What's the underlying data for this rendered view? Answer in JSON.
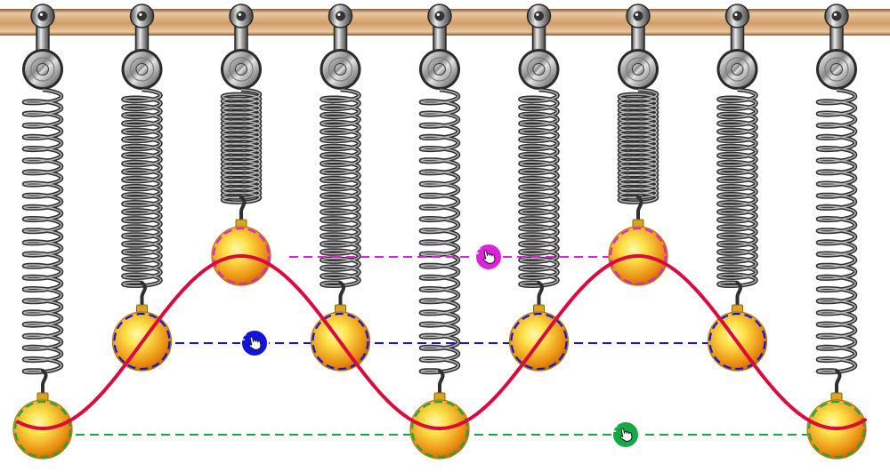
{
  "scene": {
    "background": "#ffffff"
  },
  "ceiling_bar": {
    "color_edge": "#8e5a30",
    "color_light": "#ebc9a0",
    "color_mid": "#cf9c68"
  },
  "spring": {
    "coil_color": "#2f2f2f",
    "highlight_color": "#b8b8b8"
  },
  "mass": {
    "color_light": "#ffe24a",
    "color_dark": "#e8890e",
    "outline_color": "#b5760c"
  },
  "wave": {
    "color": "#dc0a3c"
  },
  "handles": [
    {
      "color": "#dd22dd",
      "icon": "hand-pointer-icon"
    },
    {
      "color": "#1414d8",
      "icon": "hand-pointer-icon"
    },
    {
      "color": "#14a847",
      "icon": "hand-pointer-icon"
    }
  ],
  "masses": [
    {
      "handle": 2
    },
    {
      "handle": 1
    },
    {
      "handle": 0
    },
    {
      "handle": 1
    },
    {
      "handle": 2
    },
    {
      "handle": 1
    },
    {
      "handle": 0
    },
    {
      "handle": 1
    },
    {
      "handle": 2
    }
  ]
}
